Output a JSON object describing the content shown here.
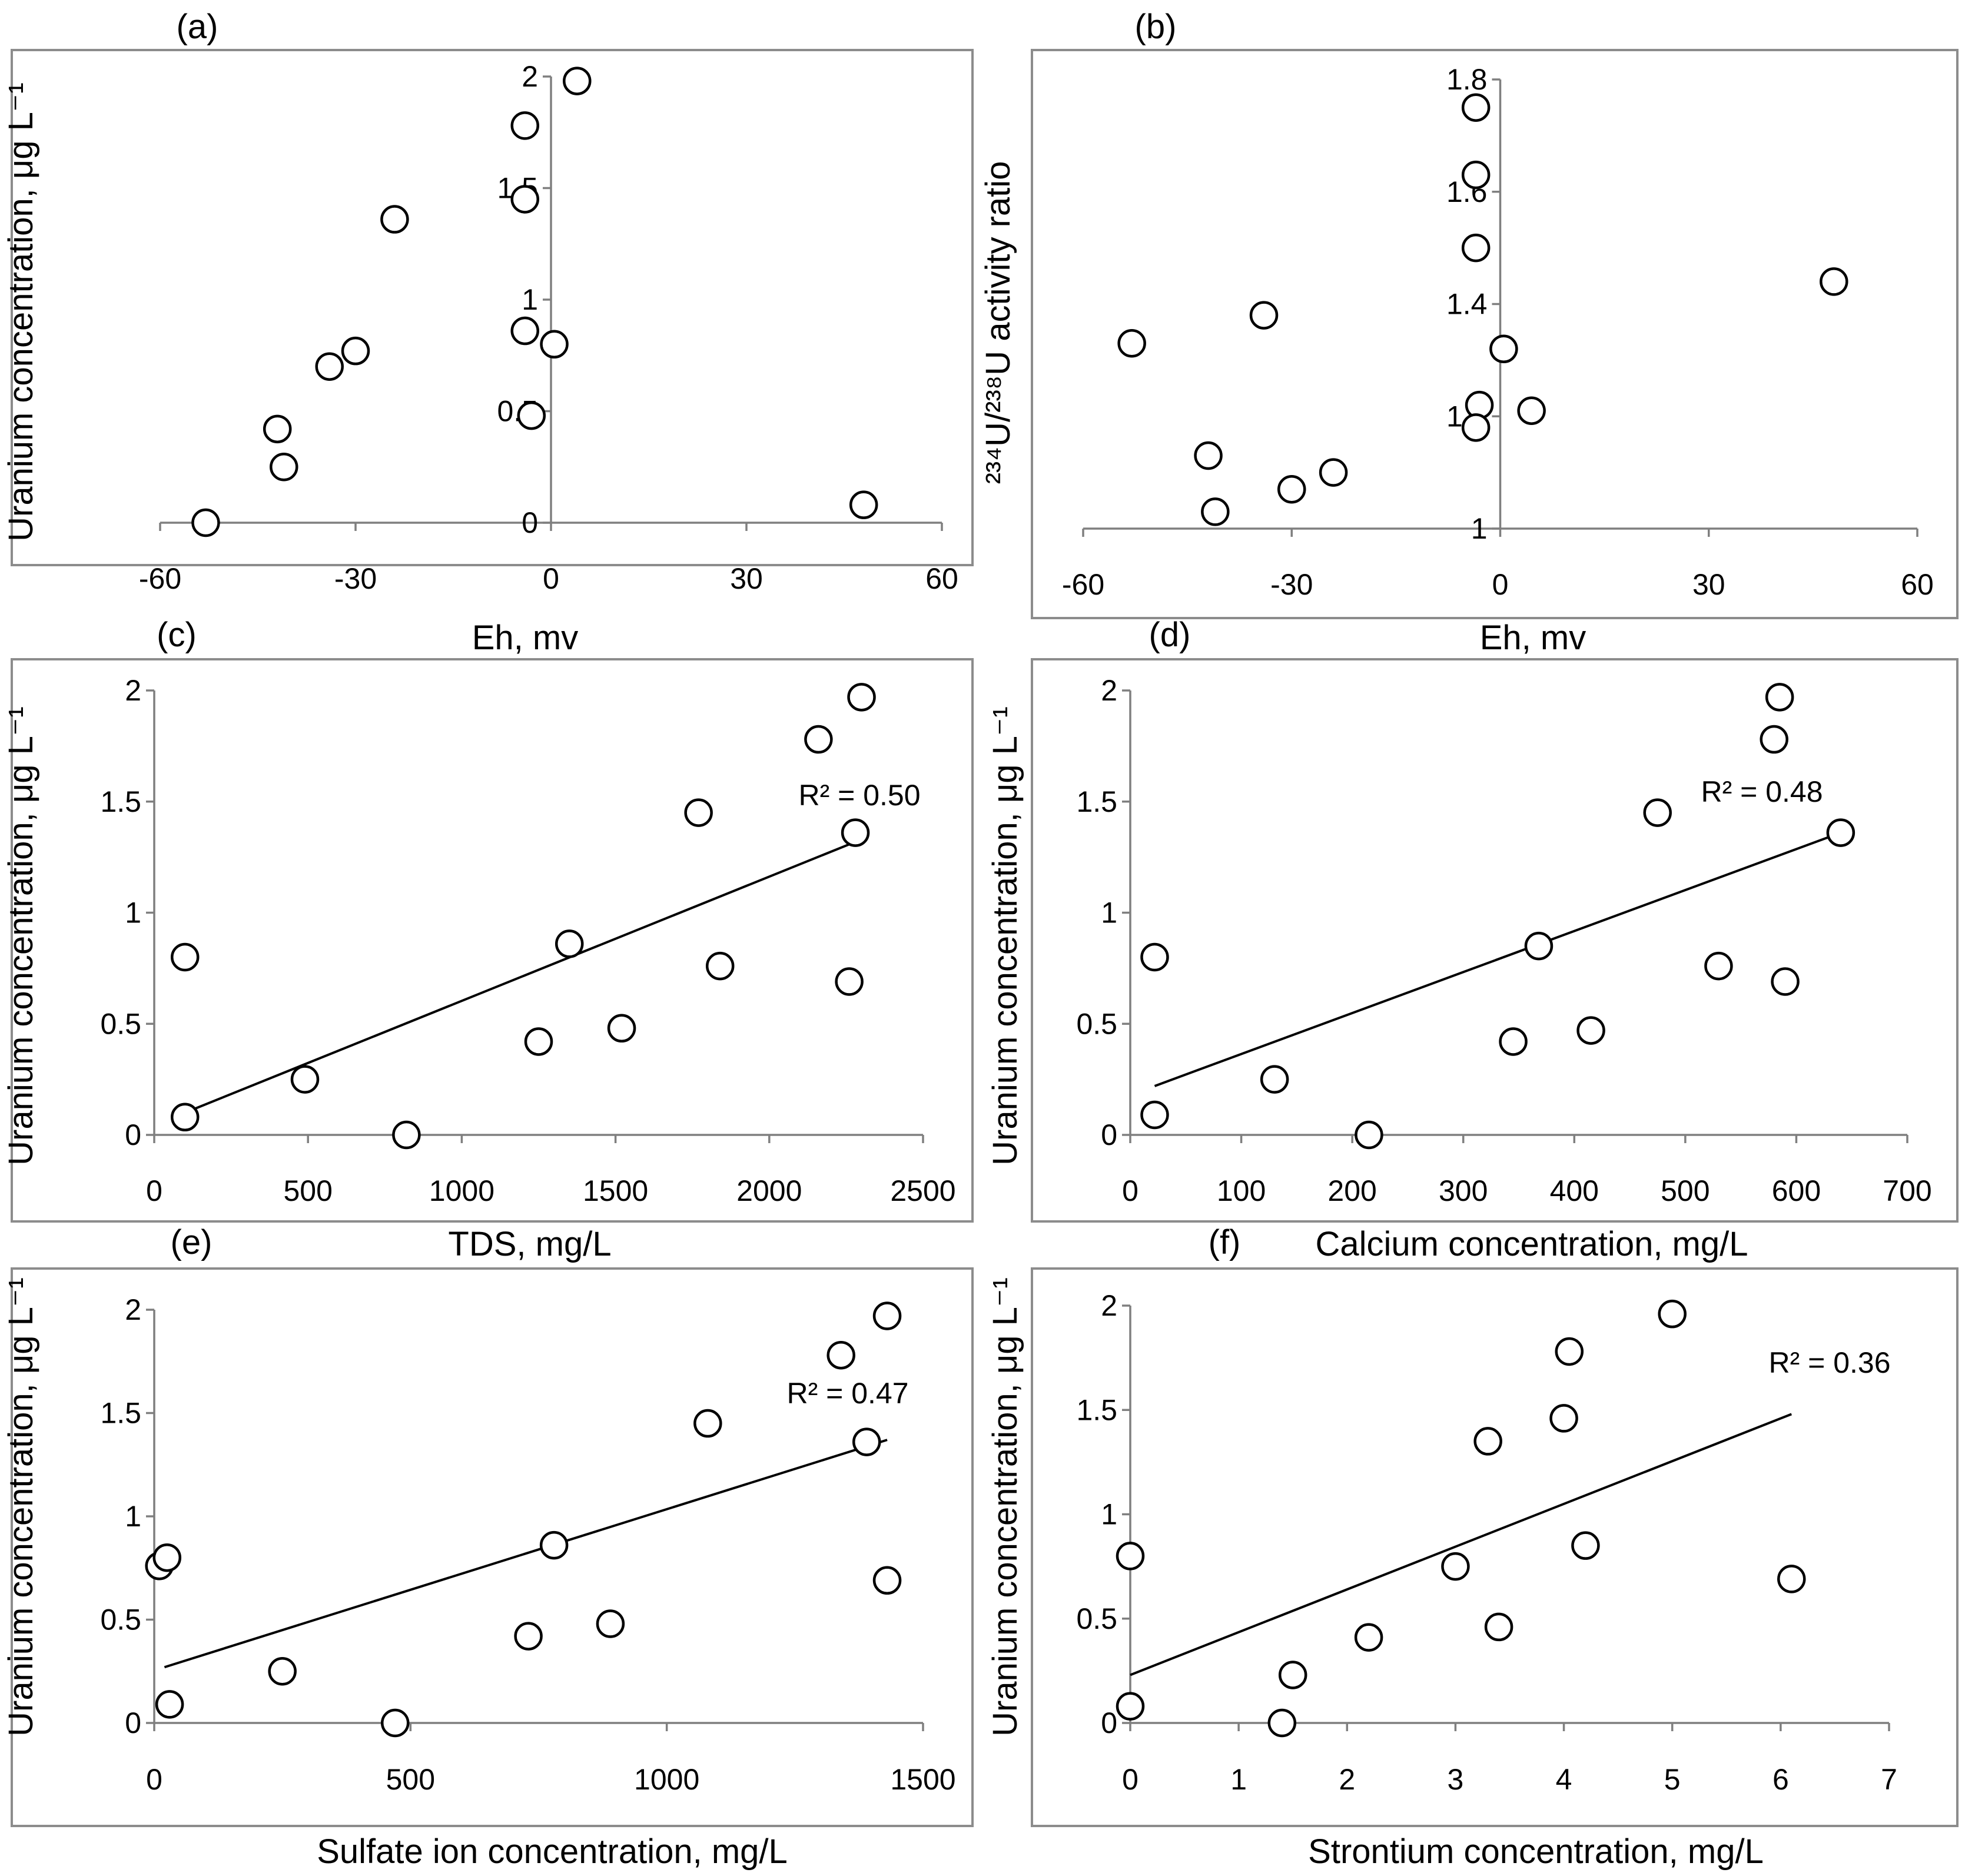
{
  "chart_data": [
    {
      "type": "scatter",
      "panel_label": "(a)",
      "xlabel": "Eh, mv",
      "ylabel": "Uranium concentration, μg L⁻¹",
      "xlim": [
        -60,
        60
      ],
      "ylim": [
        0,
        2
      ],
      "xticks": [
        -60,
        -30,
        0,
        30,
        60
      ],
      "yticks": [
        0,
        0.5,
        1,
        1.5,
        2
      ],
      "xtick_labels": [
        "-60",
        "-30",
        "0",
        "30",
        "60"
      ],
      "ytick_labels": [
        "0",
        "0.5",
        "1",
        "1.5",
        "2"
      ],
      "axis_cross": {
        "x": 0,
        "y": 0
      },
      "r2_label": "",
      "trendline": null,
      "points": [
        {
          "x": -53,
          "y": 0
        },
        {
          "x": -42,
          "y": 0.42
        },
        {
          "x": -41,
          "y": 0.25
        },
        {
          "x": -34,
          "y": 0.7
        },
        {
          "x": -30,
          "y": 0.77
        },
        {
          "x": -24,
          "y": 1.36
        },
        {
          "x": -4,
          "y": 1.78
        },
        {
          "x": -4,
          "y": 1.45
        },
        {
          "x": -4,
          "y": 0.86
        },
        {
          "x": -3,
          "y": 0.48
        },
        {
          "x": 0.5,
          "y": 0.8
        },
        {
          "x": 4,
          "y": 1.98
        },
        {
          "x": 48,
          "y": 0.08
        }
      ]
    },
    {
      "type": "scatter",
      "panel_label": "(b)",
      "xlabel": "Eh, mv",
      "ylabel": "²³⁴U/²³⁸U activity ratio",
      "xlim": [
        -60,
        60
      ],
      "ylim": [
        1,
        1.8
      ],
      "xticks": [
        -60,
        -30,
        0,
        30,
        60
      ],
      "yticks": [
        1,
        1.2,
        1.4,
        1.6,
        1.8
      ],
      "xtick_labels": [
        "-60",
        "-30",
        "0",
        "30",
        "60"
      ],
      "ytick_labels": [
        "1",
        "1.2",
        "1.4",
        "1.6",
        "1.8"
      ],
      "axis_cross": {
        "x": 0,
        "y": 1
      },
      "r2_label": "",
      "trendline": null,
      "points": [
        {
          "x": -53,
          "y": 1.33
        },
        {
          "x": -42,
          "y": 1.13
        },
        {
          "x": -41,
          "y": 1.03
        },
        {
          "x": -34,
          "y": 1.38
        },
        {
          "x": -30,
          "y": 1.07
        },
        {
          "x": -24,
          "y": 1.1
        },
        {
          "x": -3.5,
          "y": 1.75
        },
        {
          "x": -3.5,
          "y": 1.63
        },
        {
          "x": -3.5,
          "y": 1.5
        },
        {
          "x": -3,
          "y": 1.22
        },
        {
          "x": -3.5,
          "y": 1.18
        },
        {
          "x": 0.5,
          "y": 1.32
        },
        {
          "x": 4.5,
          "y": 1.21
        },
        {
          "x": 48,
          "y": 1.44
        }
      ]
    },
    {
      "type": "scatter",
      "panel_label": "(c)",
      "xlabel": "TDS, mg/L",
      "ylabel": "Uranium concentration, μg L⁻¹",
      "xlim": [
        0,
        2500
      ],
      "ylim": [
        0,
        2
      ],
      "xticks": [
        0,
        500,
        1000,
        1500,
        2000,
        2500
      ],
      "yticks": [
        0,
        0.5,
        1,
        1.5,
        2
      ],
      "xtick_labels": [
        "0",
        "500",
        "1000",
        "1500",
        "2000",
        "2500"
      ],
      "ytick_labels": [
        "0",
        "0.5",
        "1",
        "1.5",
        "2"
      ],
      "axis_cross": {
        "x": 0,
        "y": 0
      },
      "r2_label": "R² = 0.50",
      "trendline": {
        "x1": 100,
        "y1": 0.1,
        "x2": 2300,
        "y2": 1.33
      },
      "points": [
        {
          "x": 100,
          "y": 0.8
        },
        {
          "x": 100,
          "y": 0.08
        },
        {
          "x": 490,
          "y": 0.25
        },
        {
          "x": 820,
          "y": 0
        },
        {
          "x": 1250,
          "y": 0.42
        },
        {
          "x": 1350,
          "y": 0.86
        },
        {
          "x": 1520,
          "y": 0.48
        },
        {
          "x": 1770,
          "y": 1.45
        },
        {
          "x": 1840,
          "y": 0.76
        },
        {
          "x": 2160,
          "y": 1.78
        },
        {
          "x": 2260,
          "y": 0.69
        },
        {
          "x": 2280,
          "y": 1.36
        },
        {
          "x": 2300,
          "y": 1.97
        }
      ]
    },
    {
      "type": "scatter",
      "panel_label": "(d)",
      "xlabel": "Calcium concentration, mg/L",
      "ylabel": "Uranium concentration, μg L⁻¹",
      "xlim": [
        0,
        700
      ],
      "ylim": [
        0,
        2
      ],
      "xticks": [
        0,
        100,
        200,
        300,
        400,
        500,
        600,
        700
      ],
      "yticks": [
        0,
        0.5,
        1,
        1.5,
        2
      ],
      "xtick_labels": [
        "0",
        "100",
        "200",
        "300",
        "400",
        "500",
        "600",
        "700"
      ],
      "ytick_labels": [
        "0",
        "0.5",
        "1",
        "1.5",
        "2"
      ],
      "axis_cross": {
        "x": 0,
        "y": 0
      },
      "r2_label": "R² = 0.48",
      "trendline": {
        "x1": 22,
        "y1": 0.22,
        "x2": 640,
        "y2": 1.36
      },
      "points": [
        {
          "x": 22,
          "y": 0.8
        },
        {
          "x": 22,
          "y": 0.09
        },
        {
          "x": 130,
          "y": 0.25
        },
        {
          "x": 215,
          "y": 0
        },
        {
          "x": 345,
          "y": 0.42
        },
        {
          "x": 368,
          "y": 0.85
        },
        {
          "x": 415,
          "y": 0.47
        },
        {
          "x": 475,
          "y": 1.45
        },
        {
          "x": 530,
          "y": 0.76
        },
        {
          "x": 580,
          "y": 1.78
        },
        {
          "x": 585,
          "y": 1.97
        },
        {
          "x": 590,
          "y": 0.69
        },
        {
          "x": 640,
          "y": 1.36
        }
      ]
    },
    {
      "type": "scatter",
      "panel_label": "(e)",
      "xlabel": "Sulfate ion concentration, mg/L",
      "ylabel": "Uranium concentration, μg L⁻¹",
      "xlim": [
        0,
        1500
      ],
      "ylim": [
        0,
        2
      ],
      "xticks": [
        0,
        500,
        1000,
        1500
      ],
      "yticks": [
        0,
        0.5,
        1,
        1.5,
        2
      ],
      "xtick_labels": [
        "0",
        "500",
        "1000",
        "1500"
      ],
      "ytick_labels": [
        "0",
        "0.5",
        "1",
        "1.5",
        "2"
      ],
      "axis_cross": {
        "x": 0,
        "y": 0
      },
      "r2_label": "R² = 0.47",
      "trendline": {
        "x1": 20,
        "y1": 0.27,
        "x2": 1430,
        "y2": 1.37
      },
      "points": [
        {
          "x": 10,
          "y": 0.76
        },
        {
          "x": 25,
          "y": 0.8
        },
        {
          "x": 30,
          "y": 0.09
        },
        {
          "x": 250,
          "y": 0.25
        },
        {
          "x": 470,
          "y": 0
        },
        {
          "x": 730,
          "y": 0.42
        },
        {
          "x": 780,
          "y": 0.86
        },
        {
          "x": 890,
          "y": 0.48
        },
        {
          "x": 1080,
          "y": 1.45
        },
        {
          "x": 1340,
          "y": 1.78
        },
        {
          "x": 1390,
          "y": 1.36
        },
        {
          "x": 1430,
          "y": 1.97
        },
        {
          "x": 1430,
          "y": 0.69
        }
      ]
    },
    {
      "type": "scatter",
      "panel_label": "(f)",
      "xlabel": "Strontium concentration, mg/L",
      "ylabel": "Uranium concentration, μg L⁻¹",
      "xlim": [
        0,
        7
      ],
      "ylim": [
        0,
        2
      ],
      "xticks": [
        0,
        1,
        2,
        3,
        4,
        5,
        6,
        7
      ],
      "yticks": [
        0,
        0.5,
        1,
        1.5,
        2
      ],
      "xtick_labels": [
        "0",
        "1",
        "2",
        "3",
        "4",
        "5",
        "6",
        "7"
      ],
      "ytick_labels": [
        "0",
        "0.5",
        "1",
        "1.5",
        "2"
      ],
      "axis_cross": {
        "x": 0,
        "y": 0
      },
      "r2_label": "R² = 0.36",
      "trendline": {
        "x1": 0,
        "y1": 0.23,
        "x2": 6.1,
        "y2": 1.48
      },
      "points": [
        {
          "x": 0,
          "y": 0.8
        },
        {
          "x": 0,
          "y": 0.08
        },
        {
          "x": 1.4,
          "y": 0
        },
        {
          "x": 1.5,
          "y": 0.23
        },
        {
          "x": 2.2,
          "y": 0.41
        },
        {
          "x": 3.0,
          "y": 0.75
        },
        {
          "x": 3.3,
          "y": 1.35
        },
        {
          "x": 3.4,
          "y": 0.46
        },
        {
          "x": 4.0,
          "y": 1.46
        },
        {
          "x": 4.05,
          "y": 1.78
        },
        {
          "x": 4.2,
          "y": 0.85
        },
        {
          "x": 5.0,
          "y": 1.96
        },
        {
          "x": 6.1,
          "y": 0.69
        }
      ]
    }
  ]
}
